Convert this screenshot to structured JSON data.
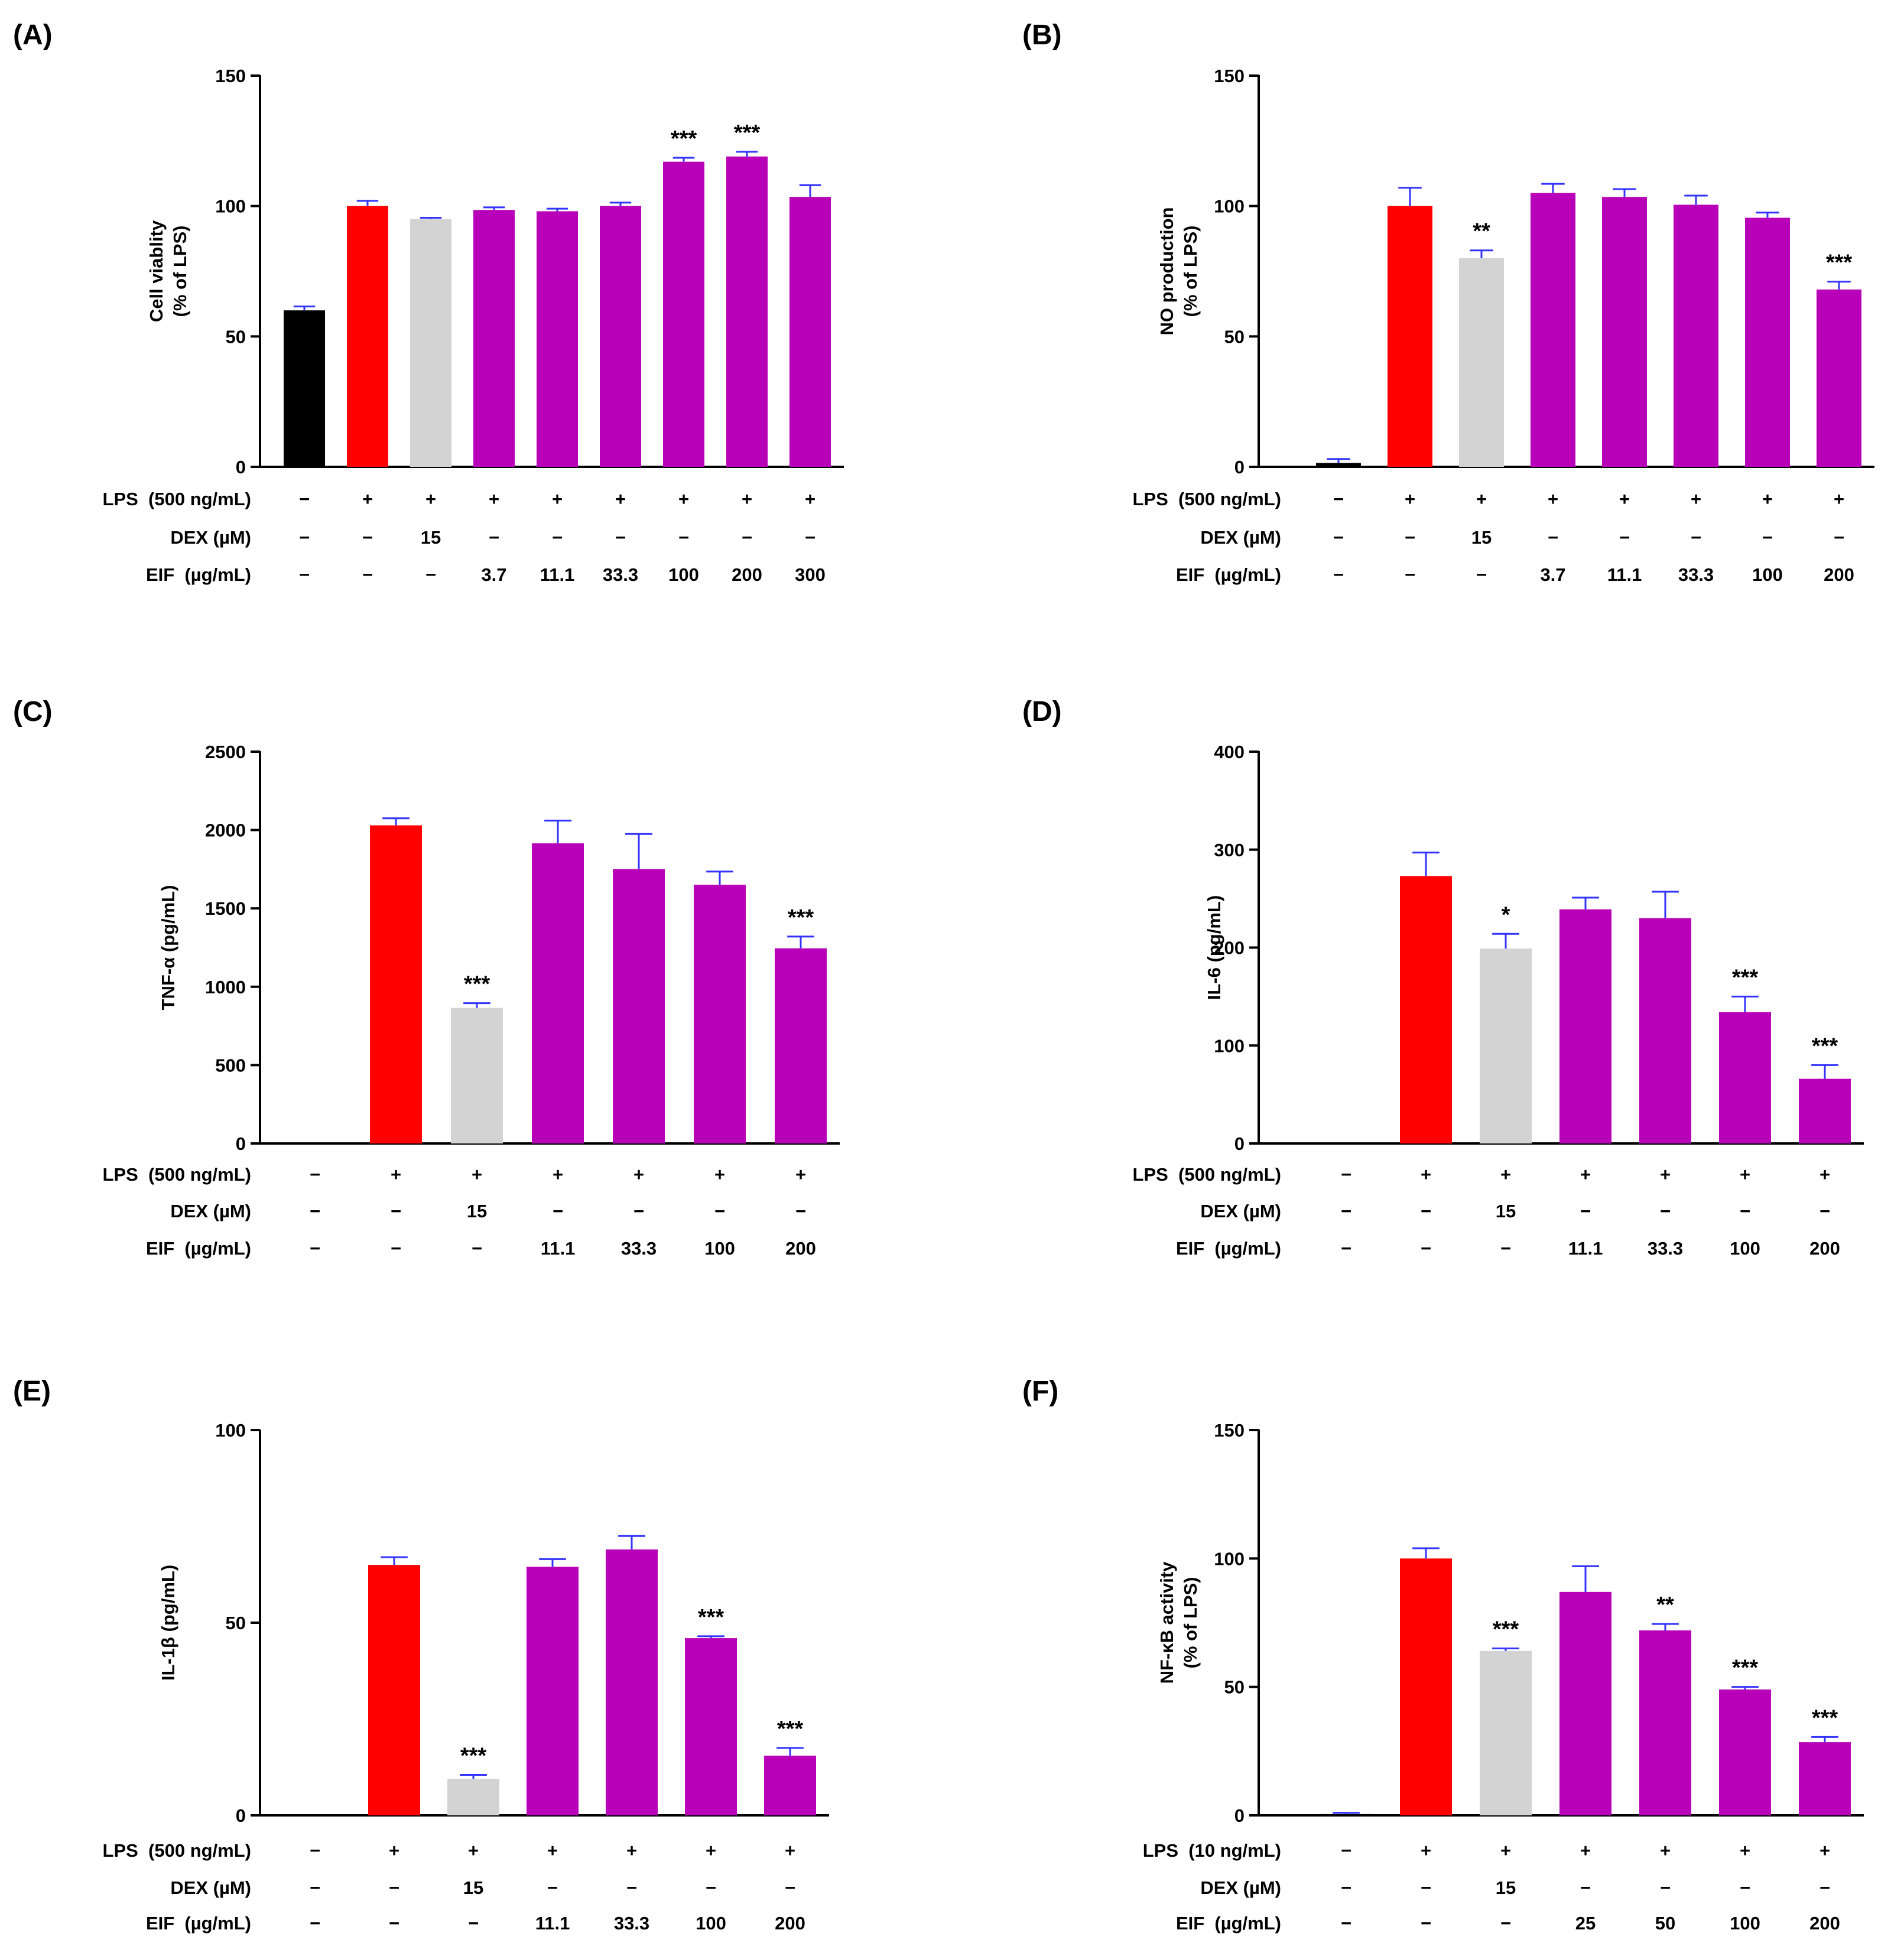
{
  "figure": {
    "colors": {
      "control": "#000000",
      "lps": "#ff0000",
      "dex": "#d3d3d3",
      "eif": "#b800b8",
      "error_bar": "#3333ff",
      "axis": "#000000"
    }
  },
  "chart_data": [
    {
      "panel": "(A)",
      "type": "bar",
      "ylabel": [
        "Cell viablity",
        "(% of LPS)"
      ],
      "ylim": [
        0,
        150
      ],
      "yticks": [
        0,
        50,
        100,
        150
      ],
      "groups": [
        "control",
        "lps",
        "dex",
        "eif",
        "eif",
        "eif",
        "eif",
        "eif",
        "eif"
      ],
      "values": [
        60,
        100,
        95,
        98.5,
        98,
        100,
        117,
        119,
        103.5
      ],
      "errors": [
        1.5,
        2,
        0.5,
        1,
        1,
        1.3,
        1.5,
        1.8,
        4.5
      ],
      "significance": [
        "",
        "",
        "",
        "",
        "",
        "",
        "***",
        "***",
        ""
      ],
      "treatments": [
        {
          "label": "LPS  (500 ng/mL)",
          "cells": [
            "−",
            "+",
            "+",
            "+",
            "+",
            "+",
            "+",
            "+",
            "+"
          ]
        },
        {
          "label": "DEX (µM)",
          "cells": [
            "−",
            "−",
            "15",
            "−",
            "−",
            "−",
            "−",
            "−",
            "−"
          ]
        },
        {
          "label": "EIF  (µg/mL)",
          "cells": [
            "−",
            "−",
            "−",
            "3.7",
            "11.1",
            "33.3",
            "100",
            "200",
            "300"
          ]
        }
      ]
    },
    {
      "panel": "(B)",
      "type": "bar",
      "ylabel": [
        "NO production",
        "(% of LPS)"
      ],
      "ylim": [
        0,
        150
      ],
      "yticks": [
        0,
        50,
        100,
        150
      ],
      "groups": [
        "control",
        "lps",
        "dex",
        "eif",
        "eif",
        "eif",
        "eif",
        "eif"
      ],
      "values": [
        1.5,
        100,
        80,
        105,
        103.5,
        100.5,
        95.5,
        68
      ],
      "errors": [
        1.5,
        7,
        3,
        3.5,
        3,
        3.5,
        2,
        3
      ],
      "significance": [
        "",
        "",
        "**",
        "",
        "",
        "",
        "",
        "***"
      ],
      "treatments": [
        {
          "label": "LPS  (500 ng/mL)",
          "cells": [
            "−",
            "+",
            "+",
            "+",
            "+",
            "+",
            "+",
            "+"
          ]
        },
        {
          "label": "DEX (µM)",
          "cells": [
            "−",
            "−",
            "15",
            "−",
            "−",
            "−",
            "−",
            "−"
          ]
        },
        {
          "label": "EIF  (µg/mL)",
          "cells": [
            "−",
            "−",
            "−",
            "3.7",
            "11.1",
            "33.3",
            "100",
            "200"
          ]
        }
      ]
    },
    {
      "panel": "(C)",
      "type": "bar",
      "ylabel": [
        "TNF-α (pg/mL)"
      ],
      "ylim": [
        0,
        2500
      ],
      "yticks": [
        0,
        500,
        1000,
        1500,
        2000,
        2500
      ],
      "groups": [
        "control",
        "lps",
        "dex",
        "eif",
        "eif",
        "eif",
        "eif"
      ],
      "values": [
        0,
        2030,
        865,
        1915,
        1750,
        1650,
        1245
      ],
      "errors": [
        0,
        45,
        30,
        145,
        225,
        85,
        75
      ],
      "significance": [
        "",
        "",
        "***",
        "",
        "",
        "",
        "***"
      ],
      "treatments": [
        {
          "label": "LPS  (500 ng/mL)",
          "cells": [
            "−",
            "+",
            "+",
            "+",
            "+",
            "+",
            "+"
          ]
        },
        {
          "label": "DEX (µM)",
          "cells": [
            "−",
            "−",
            "15",
            "−",
            "−",
            "−",
            "−"
          ]
        },
        {
          "label": "EIF  (µg/mL)",
          "cells": [
            "−",
            "−",
            "−",
            "11.1",
            "33.3",
            "100",
            "200"
          ]
        }
      ]
    },
    {
      "panel": "(D)",
      "type": "bar",
      "ylabel": [
        "IL-6 (pg/mL)"
      ],
      "ylim": [
        0,
        400
      ],
      "yticks": [
        0,
        100,
        200,
        300,
        400
      ],
      "groups": [
        "control",
        "lps",
        "dex",
        "eif",
        "eif",
        "eif",
        "eif"
      ],
      "values": [
        0,
        273,
        199,
        239,
        230,
        134,
        66
      ],
      "errors": [
        0,
        24,
        15,
        12,
        27,
        16,
        14
      ],
      "significance": [
        "",
        "",
        "*",
        "",
        "",
        "***",
        "***"
      ],
      "treatments": [
        {
          "label": "LPS  (500 ng/mL)",
          "cells": [
            "−",
            "+",
            "+",
            "+",
            "+",
            "+",
            "+"
          ]
        },
        {
          "label": "DEX (µM)",
          "cells": [
            "−",
            "−",
            "15",
            "−",
            "−",
            "−",
            "−"
          ]
        },
        {
          "label": "EIF  (µg/mL)",
          "cells": [
            "−",
            "−",
            "−",
            "11.1",
            "33.3",
            "100",
            "200"
          ]
        }
      ]
    },
    {
      "panel": "(E)",
      "type": "bar",
      "ylabel": [
        "IL-1β (pg/mL)"
      ],
      "ylim": [
        0,
        100
      ],
      "yticks": [
        0,
        50,
        100
      ],
      "groups": [
        "control",
        "lps",
        "dex",
        "eif",
        "eif",
        "eif",
        "eif"
      ],
      "values": [
        0,
        65,
        9.5,
        64.5,
        69,
        46,
        15.5
      ],
      "errors": [
        0,
        2,
        1,
        2,
        3.5,
        0.5,
        2
      ],
      "significance": [
        "",
        "",
        "***",
        "",
        "",
        "***",
        "***"
      ],
      "treatments": [
        {
          "label": "LPS  (500 ng/mL)",
          "cells": [
            "−",
            "+",
            "+",
            "+",
            "+",
            "+",
            "+"
          ]
        },
        {
          "label": "DEX (µM)",
          "cells": [
            "−",
            "−",
            "15",
            "−",
            "−",
            "−",
            "−"
          ]
        },
        {
          "label": "EIF  (µg/mL)",
          "cells": [
            "−",
            "−",
            "−",
            "11.1",
            "33.3",
            "100",
            "200"
          ]
        }
      ]
    },
    {
      "panel": "(F)",
      "type": "bar",
      "ylabel": [
        "NF-κB activity",
        "(% of LPS)"
      ],
      "ylim": [
        0,
        150
      ],
      "yticks": [
        0,
        50,
        100,
        150
      ],
      "groups": [
        "control",
        "lps",
        "dex",
        "eif",
        "eif",
        "eif",
        "eif"
      ],
      "values": [
        0.5,
        100,
        64,
        87,
        72,
        49,
        28.5
      ],
      "errors": [
        0.5,
        4,
        1,
        10,
        2.5,
        1,
        2
      ],
      "significance": [
        "",
        "",
        "***",
        "",
        "**",
        "***",
        "***"
      ],
      "treatments": [
        {
          "label": "LPS  (10 ng/mL)",
          "cells": [
            "−",
            "+",
            "+",
            "+",
            "+",
            "+",
            "+"
          ]
        },
        {
          "label": "DEX (µM)",
          "cells": [
            "−",
            "−",
            "15",
            "−",
            "−",
            "−",
            "−"
          ]
        },
        {
          "label": "EIF  (µg/mL)",
          "cells": [
            "−",
            "−",
            "−",
            "25",
            "50",
            "100",
            "200"
          ]
        }
      ]
    }
  ]
}
